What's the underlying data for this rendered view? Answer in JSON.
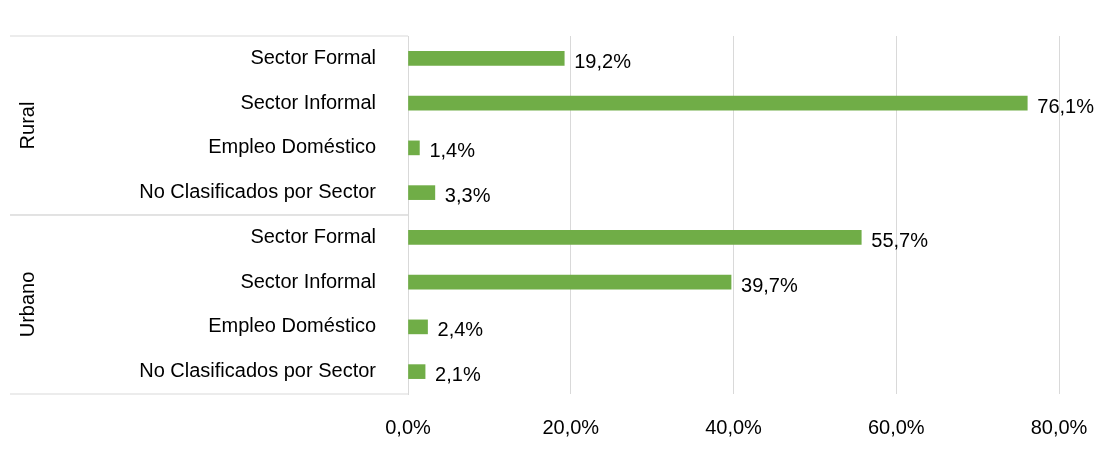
{
  "chart_data": {
    "type": "bar",
    "orientation": "horizontal",
    "categories": [
      "Sector Formal",
      "Sector Informal",
      "Empleo Doméstico",
      "No Clasificados por Sector",
      "Sector Formal",
      "Sector Informal",
      "Empleo Doméstico",
      "No Clasificados por Sector"
    ],
    "values": [
      19.2,
      76.1,
      1.4,
      3.3,
      55.7,
      39.7,
      2.4,
      2.1
    ],
    "value_labels": [
      "19,2%",
      "76,1%",
      "1,4%",
      "3,3%",
      "55,7%",
      "39,7%",
      "2,4%",
      "2,1%"
    ],
    "color": "#70ad47",
    "xlim": [
      0,
      80
    ],
    "xticks": [
      {
        "value": 0,
        "label": "0,0%"
      },
      {
        "value": 20,
        "label": "20,0%"
      },
      {
        "value": 40,
        "label": "40,0%"
      },
      {
        "value": 60,
        "label": "60,0%"
      },
      {
        "value": 80,
        "label": "80,0%"
      }
    ],
    "grid": "x",
    "annotations": [
      "Rural",
      "Urbano"
    ]
  }
}
